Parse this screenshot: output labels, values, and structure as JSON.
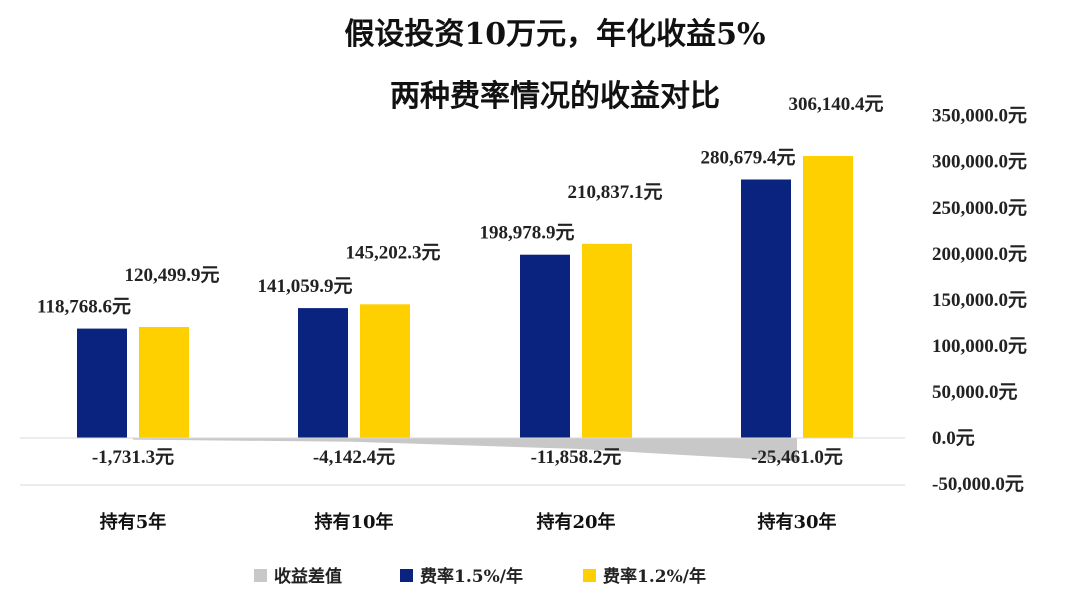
{
  "chart_data": {
    "type": "bar",
    "title_line1": "假设投资10万元，年化收益5%",
    "title_line2": "两种费率情况的收益对比",
    "categories": [
      "持有5年",
      "持有10年",
      "持有20年",
      "持有30年"
    ],
    "series": [
      {
        "name": "收益差值",
        "kind": "area",
        "color": "#C8C8C8",
        "values": [
          -1731.3,
          -4142.4,
          -11858.2,
          -25461.0
        ],
        "labels": [
          "-1,731.3元",
          "-4,142.4元",
          "-11,858.2元",
          "-25,461.0元"
        ]
      },
      {
        "name": "费率1.5%/年",
        "kind": "bar",
        "color": "#0A237F",
        "values": [
          118768.6,
          141059.9,
          198978.9,
          280679.4
        ],
        "labels": [
          "118,768.6元",
          "141,059.9元",
          "198,978.9元",
          "280,679.4元"
        ]
      },
      {
        "name": "费率1.2%/年",
        "kind": "bar",
        "color": "#FFD000",
        "values": [
          120499.9,
          145202.3,
          210837.1,
          306140.4
        ],
        "labels": [
          "120,499.9元",
          "145,202.3元",
          "210,837.1元",
          "306,140.4元"
        ]
      }
    ],
    "y_axis": {
      "position": "right",
      "min": -50000,
      "max": 350000,
      "step": 50000,
      "tick_labels": [
        "-50,000.0元",
        "0.0元",
        "50,000.0元",
        "100,000.0元",
        "150,000.0元",
        "200,000.0元",
        "250,000.0元",
        "300,000.0元",
        "350,000.0元"
      ]
    },
    "grid": false,
    "legend": "bottom"
  }
}
